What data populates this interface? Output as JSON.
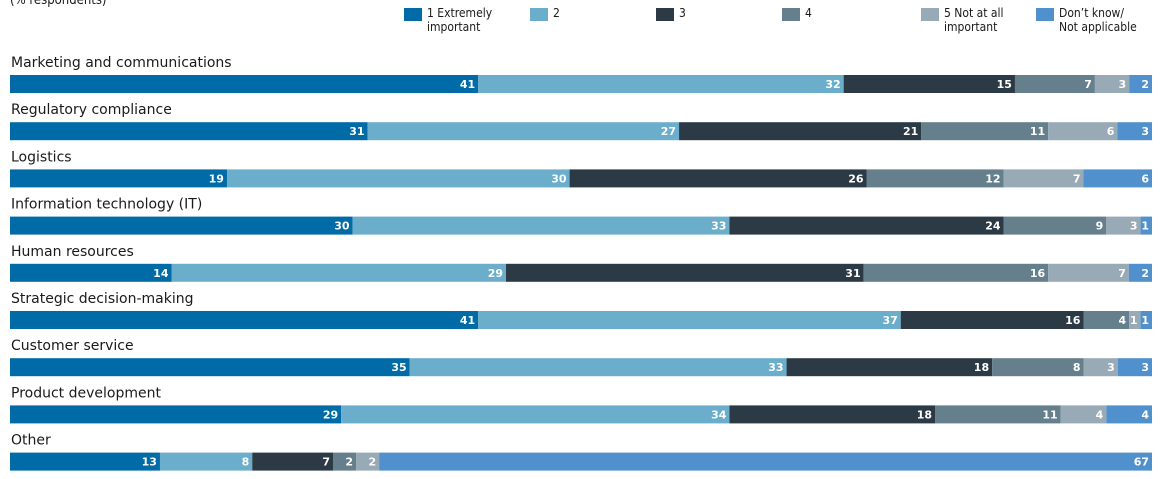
{
  "chart_data": {
    "type": "bar",
    "orientation": "horizontal",
    "stacked": true,
    "subtitle": "(% respondents)",
    "categories": [
      "Marketing and communications",
      "Regulatory compliance",
      "Logistics",
      "Information technology (IT)",
      "Human resources",
      "Strategic decision-making",
      "Customer service",
      "Product development",
      "Other"
    ],
    "series": [
      {
        "name": "1 Extremely\nimportant",
        "color": "#006ba6",
        "values": [
          41,
          31,
          19,
          30,
          14,
          41,
          35,
          29,
          13
        ]
      },
      {
        "name": "2",
        "color": "#6aaecc",
        "values": [
          32,
          27,
          30,
          33,
          29,
          37,
          33,
          34,
          8
        ]
      },
      {
        "name": "3",
        "color": "#2c3a45",
        "values": [
          15,
          21,
          26,
          24,
          31,
          16,
          18,
          18,
          7
        ]
      },
      {
        "name": "4",
        "color": "#657f8c",
        "values": [
          7,
          11,
          12,
          9,
          16,
          4,
          8,
          11,
          2
        ]
      },
      {
        "name": "5 Not at all\nimportant",
        "color": "#98aab5",
        "values": [
          3,
          6,
          7,
          3,
          7,
          1,
          3,
          4,
          2
        ]
      },
      {
        "name": "Don’t know/\nNot applicable",
        "color": "#5090cc",
        "values": [
          2,
          3,
          6,
          1,
          2,
          1,
          3,
          4,
          67
        ]
      }
    ],
    "xlim": [
      0,
      100
    ],
    "legend_position": "top"
  }
}
